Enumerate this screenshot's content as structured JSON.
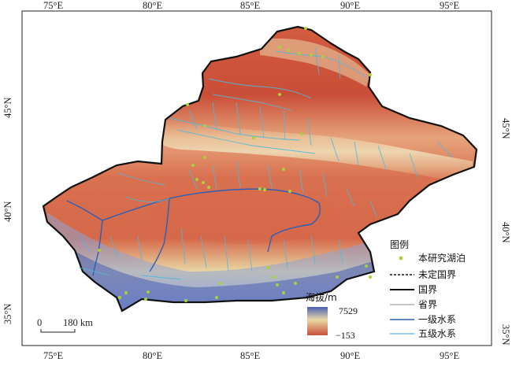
{
  "map": {
    "lon_labels": [
      "75°E",
      "80°E",
      "85°E",
      "90°E",
      "95°E"
    ],
    "lat_labels": [
      "45°N",
      "40°N",
      "35°N"
    ],
    "colors": {
      "frame": "#222222",
      "boundary": "#111111",
      "lake_point": "#a8d13a",
      "river_primary": "#2b5fb8",
      "river_fifth": "#4fb8e0",
      "province_line": "#8a8a8a",
      "elev_high": "#4a5fb0",
      "elev_mid": "#e9d9a6",
      "elev_low": "#c8503a"
    }
  },
  "elevation": {
    "title": "海拔/m",
    "max_label": "7529",
    "min_label": "−153"
  },
  "scale_bar": {
    "zero_label": "0",
    "distance_label": "180 km"
  },
  "legend": {
    "title": "图例",
    "items": [
      {
        "label": "本研究湖泊",
        "symbol": "point"
      },
      {
        "label": "未定国界",
        "symbol": "dashed-line"
      },
      {
        "label": "国界",
        "symbol": "thick-line"
      },
      {
        "label": "省界",
        "symbol": "thin-line"
      },
      {
        "label": "一级水系",
        "symbol": "primary-river"
      },
      {
        "label": "五级水系",
        "symbol": "fifth-river"
      }
    ]
  }
}
